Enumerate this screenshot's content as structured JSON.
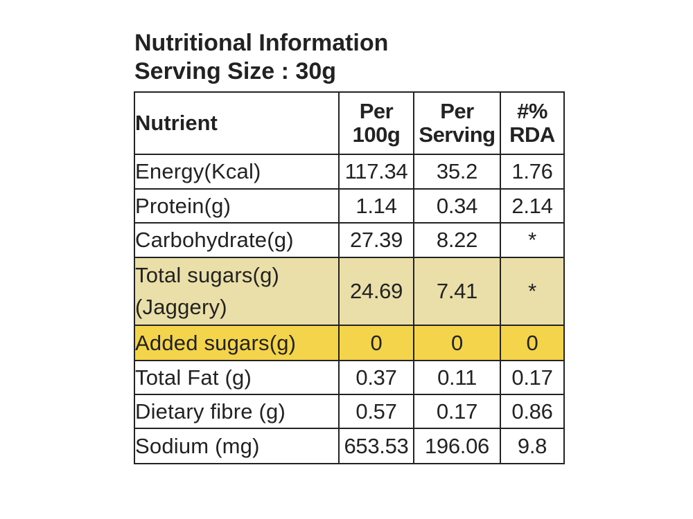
{
  "heading": {
    "title": "Nutritional Information",
    "serving_size": "Serving Size : 30g"
  },
  "table": {
    "headers": {
      "nutrient": "Nutrient",
      "per100_line1": "Per",
      "per100_line2": "100g",
      "perserving_line1": "Per",
      "perserving_line2": "Serving",
      "rda_line1": "#%",
      "rda_line2": "RDA"
    },
    "rows": [
      {
        "nutrient": "Energy(Kcal)",
        "per_100g": "117.34",
        "per_serving": "35.2",
        "rda": "1.76",
        "highlight": ""
      },
      {
        "nutrient": "Protein(g)",
        "per_100g": "1.14",
        "per_serving": "0.34",
        "rda": "2.14",
        "highlight": ""
      },
      {
        "nutrient": "Carbohydrate(g)",
        "per_100g": "27.39",
        "per_serving": "8.22",
        "rda": "*",
        "highlight": ""
      },
      {
        "nutrient_line1": "Total sugars(g)",
        "nutrient_line2": "(Jaggery)",
        "per_100g": "24.69",
        "per_serving": "7.41",
        "rda": "*",
        "highlight": "#ebdfa9"
      },
      {
        "nutrient": "Added sugars(g)",
        "per_100g": "0",
        "per_serving": "0",
        "rda": "0",
        "highlight": "#f4d44a"
      },
      {
        "nutrient": "Total Fat (g)",
        "per_100g": "0.37",
        "per_serving": "0.11",
        "rda": "0.17",
        "highlight": ""
      },
      {
        "nutrient": "Dietary fibre (g)",
        "per_100g": "0.57",
        "per_serving": "0.17",
        "rda": "0.86",
        "highlight": ""
      },
      {
        "nutrient": "Sodium (mg)",
        "per_100g": "653.53",
        "per_serving": "196.06",
        "rda": "9.8",
        "highlight": ""
      }
    ]
  }
}
